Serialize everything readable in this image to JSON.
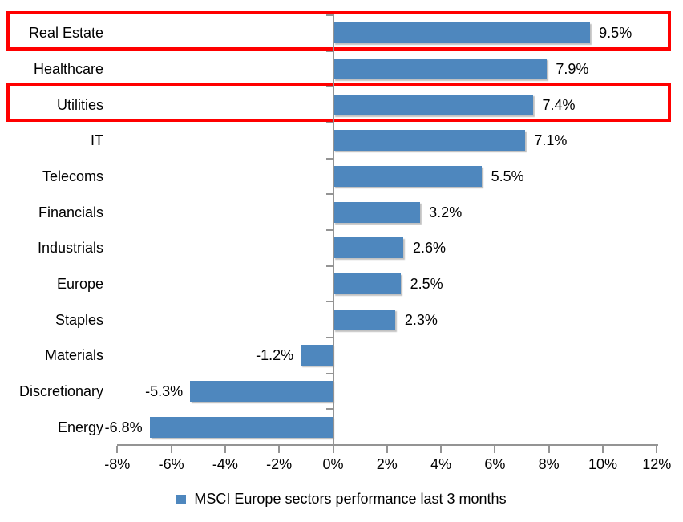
{
  "chart_data": {
    "type": "bar",
    "orientation": "horizontal",
    "legend": "MSCI Europe sectors performance last 3 months",
    "legend_position": "bottom",
    "categories": [
      "Real Estate",
      "Healthcare",
      "Utilities",
      "IT",
      "Telecoms",
      "Financials",
      "Industrials",
      "Europe",
      "Staples",
      "Materials",
      "Discretionary",
      "Energy"
    ],
    "values": [
      9.5,
      7.9,
      7.4,
      7.1,
      5.5,
      3.2,
      2.6,
      2.5,
      2.3,
      -1.2,
      -5.3,
      -6.8
    ],
    "value_labels": [
      "9.5%",
      "7.9%",
      "7.4%",
      "7.1%",
      "5.5%",
      "3.2%",
      "2.6%",
      "2.5%",
      "2.3%",
      "-1.2%",
      "-5.3%",
      "-6.8%"
    ],
    "highlighted_categories": [
      "Real Estate",
      "Utilities"
    ],
    "grid": "off",
    "x_axis": {
      "min": -8,
      "max": 12,
      "ticks": [
        -8,
        -6,
        -4,
        -2,
        0,
        2,
        4,
        6,
        8,
        10,
        12
      ],
      "tick_labels": [
        "-8%",
        "-6%",
        "-4%",
        "-2%",
        "0%",
        "2%",
        "4%",
        "6%",
        "8%",
        "10%",
        "12%"
      ]
    },
    "colors": {
      "bar": "#4E87BE",
      "axis": "#949494",
      "highlight_box": "#FF0000",
      "text": "#000000",
      "background": "#FFFFFF"
    }
  }
}
